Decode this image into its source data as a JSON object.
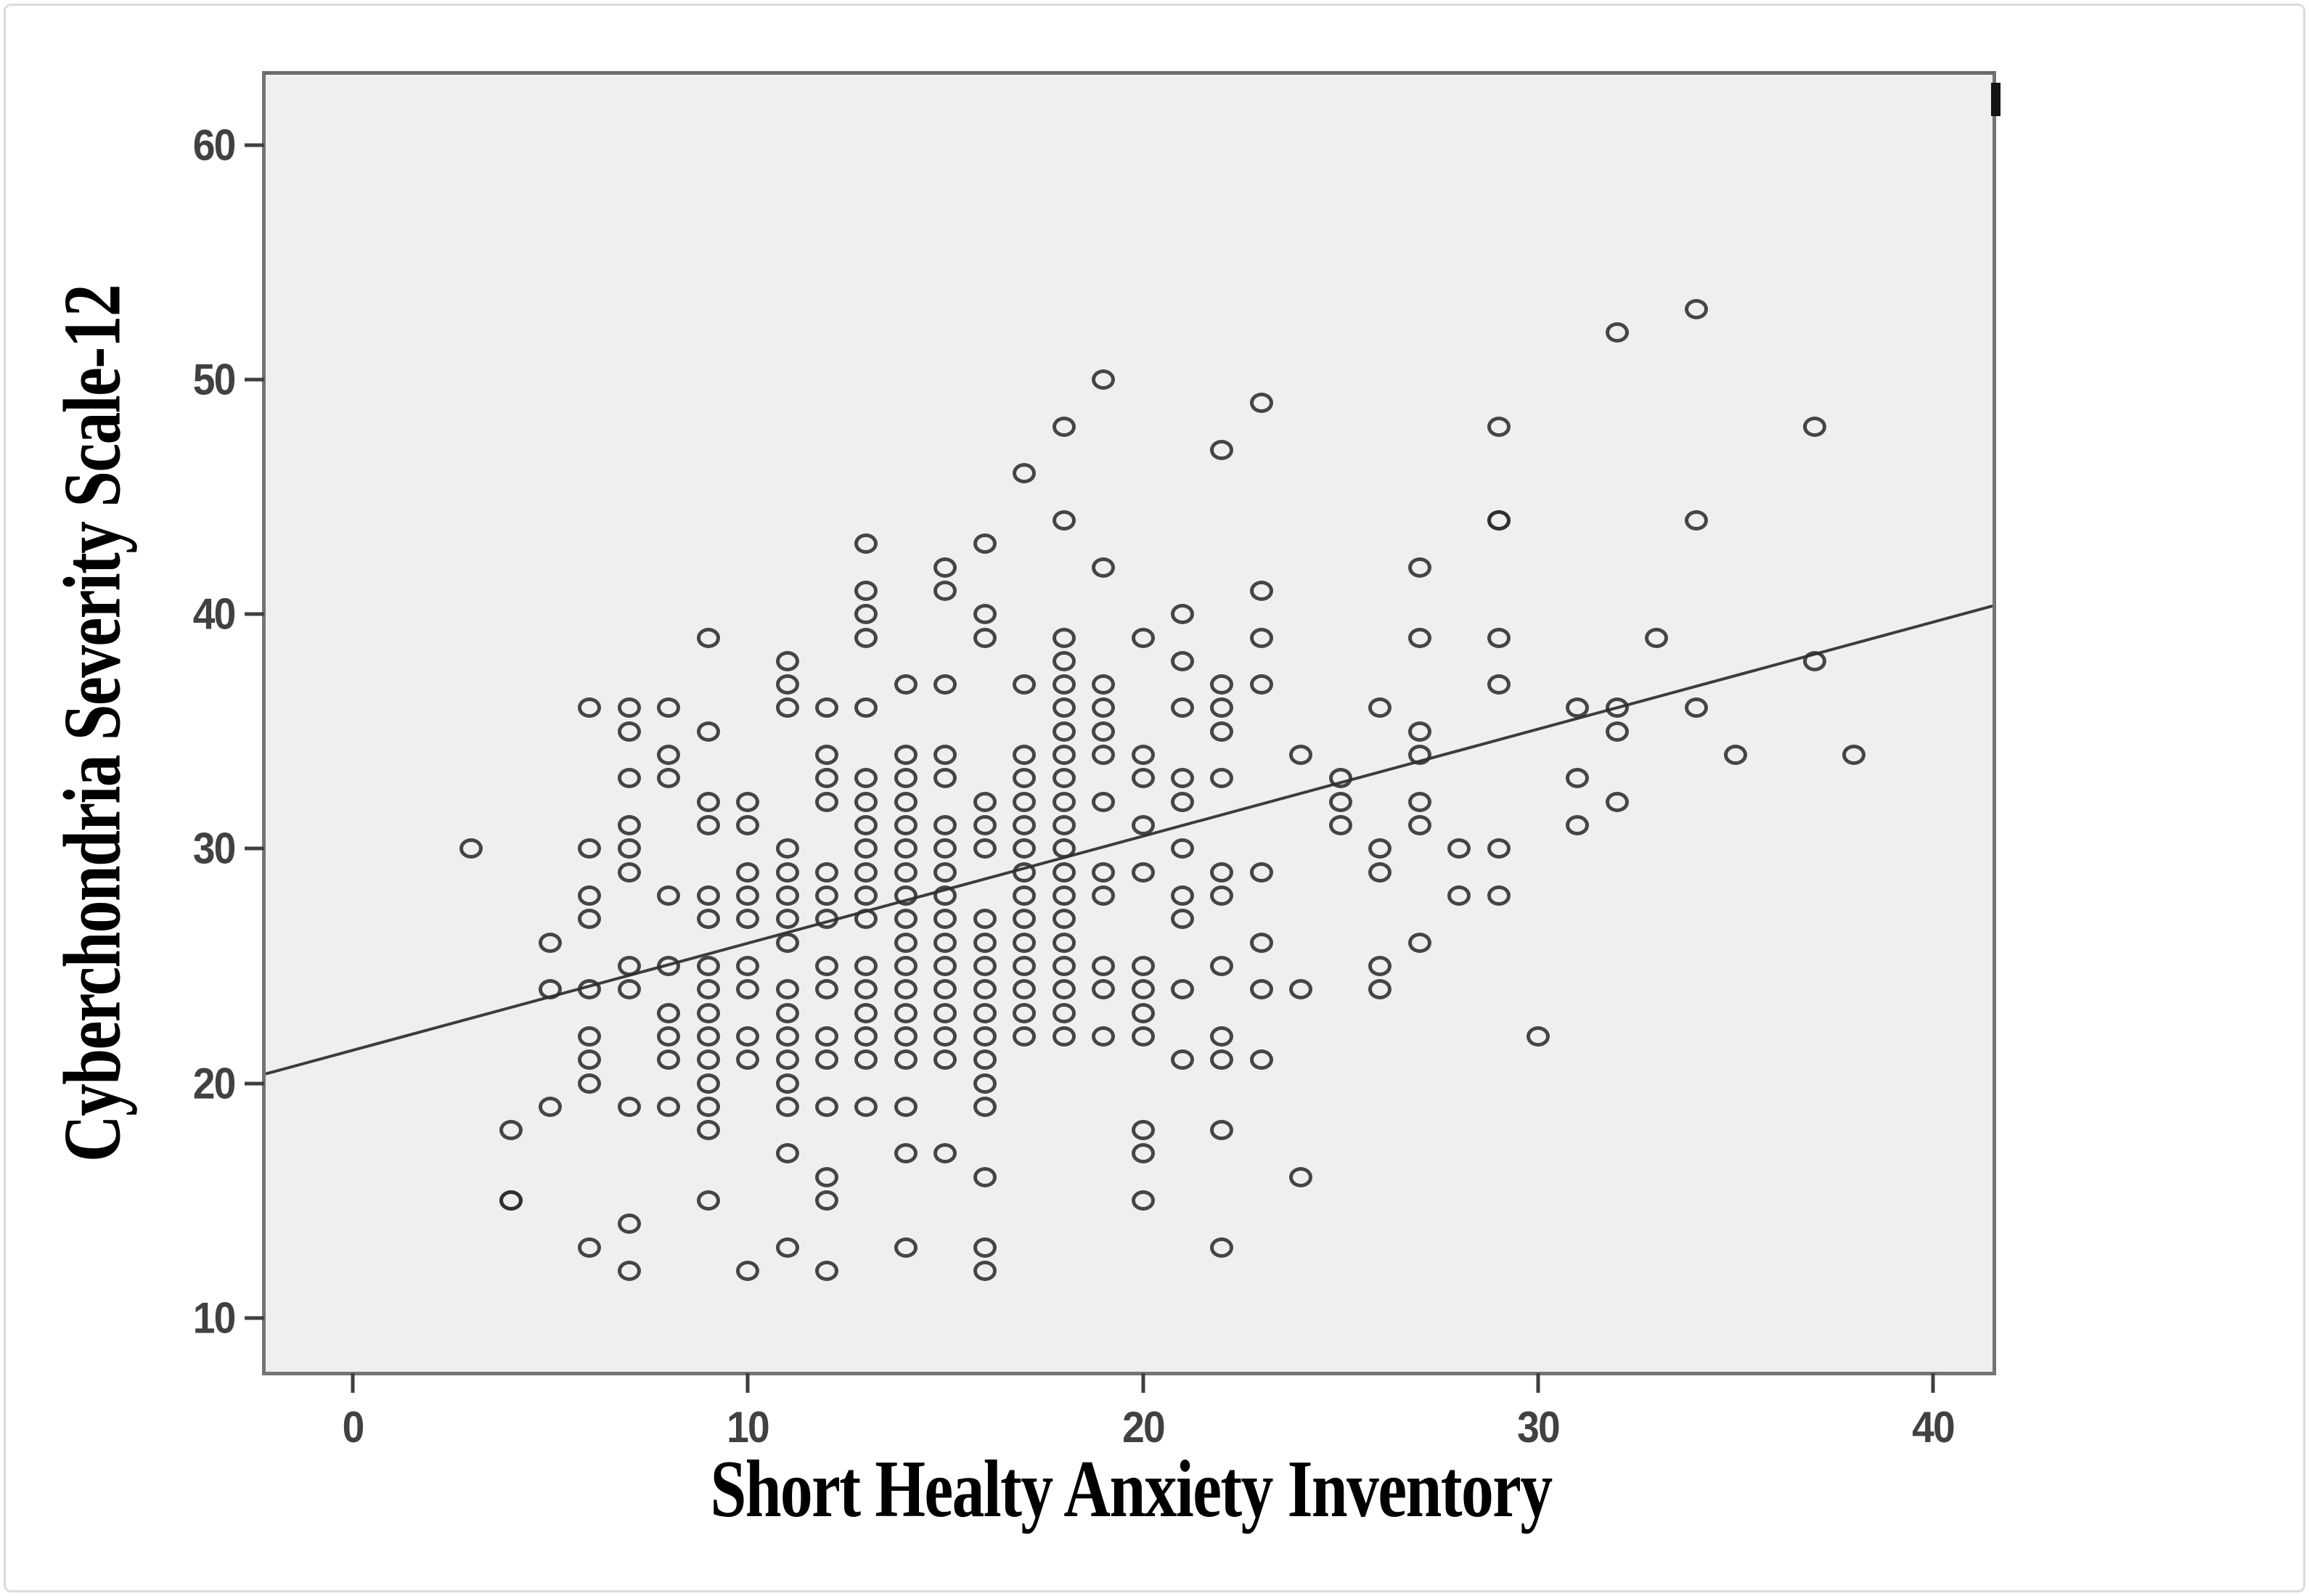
{
  "colors": {
    "panel_background": "#efefef",
    "panel_border": "#757575",
    "point_stroke": "#2e2e2e",
    "fit_line": "#3c3c3c",
    "tick_label": "#414141",
    "axis_title": "#000000"
  },
  "chart_data": {
    "type": "scatter",
    "title": "",
    "xlabel": "Short Healty Anxiety Inventory",
    "ylabel": "Cyberchondria Severity Scale-12",
    "x_ticks": [
      0,
      10,
      20,
      30,
      40
    ],
    "y_ticks": [
      10,
      20,
      30,
      40,
      50,
      60
    ],
    "xlim": [
      -2.2,
      41.5
    ],
    "ylim": [
      7.7,
      63.0
    ],
    "grid": false,
    "legend": "none",
    "marker": "open-circle",
    "fit_line": {
      "x1": -2.2,
      "y1": 20.4,
      "x2": 41.5,
      "y2": 40.35,
      "slope": 0.457,
      "intercept": 21.4
    },
    "points": [
      [
        3,
        30
      ],
      [
        4,
        18
      ],
      [
        4,
        15
      ],
      [
        4,
        15
      ],
      [
        5,
        26
      ],
      [
        5,
        24
      ],
      [
        5,
        19
      ],
      [
        6,
        36
      ],
      [
        6,
        30
      ],
      [
        6,
        28
      ],
      [
        6,
        27
      ],
      [
        6,
        24
      ],
      [
        6,
        22
      ],
      [
        6,
        21
      ],
      [
        6,
        20
      ],
      [
        6,
        13
      ],
      [
        7,
        36
      ],
      [
        7,
        35
      ],
      [
        7,
        33
      ],
      [
        7,
        31
      ],
      [
        7,
        30
      ],
      [
        7,
        29
      ],
      [
        7,
        25
      ],
      [
        7,
        24
      ],
      [
        7,
        19
      ],
      [
        7,
        14
      ],
      [
        7,
        12
      ],
      [
        8,
        36
      ],
      [
        8,
        34
      ],
      [
        8,
        33
      ],
      [
        8,
        28
      ],
      [
        8,
        25
      ],
      [
        8,
        23
      ],
      [
        8,
        22
      ],
      [
        8,
        21
      ],
      [
        8,
        19
      ],
      [
        9,
        39
      ],
      [
        9,
        35
      ],
      [
        9,
        32
      ],
      [
        9,
        31
      ],
      [
        9,
        28
      ],
      [
        9,
        27
      ],
      [
        9,
        25
      ],
      [
        9,
        24
      ],
      [
        9,
        23
      ],
      [
        9,
        22
      ],
      [
        9,
        21
      ],
      [
        9,
        20
      ],
      [
        9,
        19
      ],
      [
        9,
        18
      ],
      [
        9,
        15
      ],
      [
        10,
        32
      ],
      [
        10,
        31
      ],
      [
        10,
        29
      ],
      [
        10,
        28
      ],
      [
        10,
        27
      ],
      [
        10,
        25
      ],
      [
        10,
        24
      ],
      [
        10,
        22
      ],
      [
        10,
        21
      ],
      [
        10,
        12
      ],
      [
        11,
        38
      ],
      [
        11,
        37
      ],
      [
        11,
        36
      ],
      [
        11,
        30
      ],
      [
        11,
        29
      ],
      [
        11,
        28
      ],
      [
        11,
        27
      ],
      [
        11,
        26
      ],
      [
        11,
        24
      ],
      [
        11,
        23
      ],
      [
        11,
        22
      ],
      [
        11,
        21
      ],
      [
        11,
        20
      ],
      [
        11,
        19
      ],
      [
        11,
        17
      ],
      [
        11,
        13
      ],
      [
        12,
        36
      ],
      [
        12,
        34
      ],
      [
        12,
        33
      ],
      [
        12,
        32
      ],
      [
        12,
        29
      ],
      [
        12,
        28
      ],
      [
        12,
        27
      ],
      [
        12,
        25
      ],
      [
        12,
        24
      ],
      [
        12,
        22
      ],
      [
        12,
        21
      ],
      [
        12,
        19
      ],
      [
        12,
        16
      ],
      [
        12,
        15
      ],
      [
        12,
        12
      ],
      [
        13,
        43
      ],
      [
        13,
        41
      ],
      [
        13,
        40
      ],
      [
        13,
        39
      ],
      [
        13,
        36
      ],
      [
        13,
        33
      ],
      [
        13,
        32
      ],
      [
        13,
        31
      ],
      [
        13,
        30
      ],
      [
        13,
        29
      ],
      [
        13,
        28
      ],
      [
        13,
        27
      ],
      [
        13,
        25
      ],
      [
        13,
        24
      ],
      [
        13,
        23
      ],
      [
        13,
        22
      ],
      [
        13,
        21
      ],
      [
        13,
        19
      ],
      [
        14,
        37
      ],
      [
        14,
        34
      ],
      [
        14,
        33
      ],
      [
        14,
        32
      ],
      [
        14,
        31
      ],
      [
        14,
        30
      ],
      [
        14,
        29
      ],
      [
        14,
        28
      ],
      [
        14,
        27
      ],
      [
        14,
        26
      ],
      [
        14,
        25
      ],
      [
        14,
        24
      ],
      [
        14,
        23
      ],
      [
        14,
        22
      ],
      [
        14,
        21
      ],
      [
        14,
        19
      ],
      [
        14,
        17
      ],
      [
        14,
        13
      ],
      [
        15,
        42
      ],
      [
        15,
        41
      ],
      [
        15,
        37
      ],
      [
        15,
        34
      ],
      [
        15,
        33
      ],
      [
        15,
        31
      ],
      [
        15,
        30
      ],
      [
        15,
        29
      ],
      [
        15,
        28
      ],
      [
        15,
        27
      ],
      [
        15,
        26
      ],
      [
        15,
        25
      ],
      [
        15,
        24
      ],
      [
        15,
        23
      ],
      [
        15,
        22
      ],
      [
        15,
        21
      ],
      [
        15,
        17
      ],
      [
        16,
        43
      ],
      [
        16,
        40
      ],
      [
        16,
        39
      ],
      [
        16,
        32
      ],
      [
        16,
        31
      ],
      [
        16,
        30
      ],
      [
        16,
        27
      ],
      [
        16,
        26
      ],
      [
        16,
        25
      ],
      [
        16,
        24
      ],
      [
        16,
        23
      ],
      [
        16,
        22
      ],
      [
        16,
        21
      ],
      [
        16,
        20
      ],
      [
        16,
        19
      ],
      [
        16,
        16
      ],
      [
        16,
        13
      ],
      [
        16,
        12
      ],
      [
        17,
        46
      ],
      [
        17,
        37
      ],
      [
        17,
        34
      ],
      [
        17,
        33
      ],
      [
        17,
        32
      ],
      [
        17,
        31
      ],
      [
        17,
        30
      ],
      [
        17,
        29
      ],
      [
        17,
        28
      ],
      [
        17,
        27
      ],
      [
        17,
        26
      ],
      [
        17,
        25
      ],
      [
        17,
        24
      ],
      [
        17,
        23
      ],
      [
        17,
        22
      ],
      [
        18,
        48
      ],
      [
        18,
        44
      ],
      [
        18,
        39
      ],
      [
        18,
        38
      ],
      [
        18,
        37
      ],
      [
        18,
        36
      ],
      [
        18,
        35
      ],
      [
        18,
        34
      ],
      [
        18,
        33
      ],
      [
        18,
        32
      ],
      [
        18,
        31
      ],
      [
        18,
        30
      ],
      [
        18,
        29
      ],
      [
        18,
        28
      ],
      [
        18,
        27
      ],
      [
        18,
        26
      ],
      [
        18,
        25
      ],
      [
        18,
        24
      ],
      [
        18,
        23
      ],
      [
        18,
        22
      ],
      [
        19,
        50
      ],
      [
        19,
        42
      ],
      [
        19,
        37
      ],
      [
        19,
        36
      ],
      [
        19,
        35
      ],
      [
        19,
        34
      ],
      [
        19,
        32
      ],
      [
        19,
        29
      ],
      [
        19,
        28
      ],
      [
        19,
        25
      ],
      [
        19,
        24
      ],
      [
        19,
        22
      ],
      [
        20,
        39
      ],
      [
        20,
        34
      ],
      [
        20,
        33
      ],
      [
        20,
        31
      ],
      [
        20,
        29
      ],
      [
        20,
        25
      ],
      [
        20,
        24
      ],
      [
        20,
        23
      ],
      [
        20,
        22
      ],
      [
        20,
        18
      ],
      [
        20,
        17
      ],
      [
        20,
        15
      ],
      [
        21,
        40
      ],
      [
        21,
        38
      ],
      [
        21,
        36
      ],
      [
        21,
        33
      ],
      [
        21,
        32
      ],
      [
        21,
        30
      ],
      [
        21,
        28
      ],
      [
        21,
        27
      ],
      [
        21,
        24
      ],
      [
        21,
        21
      ],
      [
        22,
        47
      ],
      [
        22,
        37
      ],
      [
        22,
        36
      ],
      [
        22,
        35
      ],
      [
        22,
        33
      ],
      [
        22,
        29
      ],
      [
        22,
        28
      ],
      [
        22,
        25
      ],
      [
        22,
        22
      ],
      [
        22,
        21
      ],
      [
        22,
        18
      ],
      [
        22,
        13
      ],
      [
        23,
        49
      ],
      [
        23,
        41
      ],
      [
        23,
        39
      ],
      [
        23,
        37
      ],
      [
        23,
        29
      ],
      [
        23,
        26
      ],
      [
        23,
        24
      ],
      [
        23,
        21
      ],
      [
        24,
        34
      ],
      [
        24,
        24
      ],
      [
        24,
        16
      ],
      [
        25,
        33
      ],
      [
        25,
        32
      ],
      [
        25,
        31
      ],
      [
        26,
        36
      ],
      [
        26,
        30
      ],
      [
        26,
        29
      ],
      [
        26,
        25
      ],
      [
        26,
        24
      ],
      [
        27,
        42
      ],
      [
        27,
        39
      ],
      [
        27,
        35
      ],
      [
        27,
        34
      ],
      [
        27,
        32
      ],
      [
        27,
        31
      ],
      [
        27,
        26
      ],
      [
        28,
        30
      ],
      [
        28,
        28
      ],
      [
        29,
        48
      ],
      [
        29,
        44
      ],
      [
        29,
        44
      ],
      [
        29,
        39
      ],
      [
        29,
        37
      ],
      [
        29,
        30
      ],
      [
        29,
        28
      ],
      [
        30,
        22
      ],
      [
        31,
        36
      ],
      [
        31,
        33
      ],
      [
        31,
        31
      ],
      [
        32,
        52
      ],
      [
        32,
        36
      ],
      [
        32,
        35
      ],
      [
        32,
        32
      ],
      [
        33,
        39
      ],
      [
        34,
        53
      ],
      [
        34,
        44
      ],
      [
        34,
        36
      ],
      [
        35,
        34
      ],
      [
        37,
        48
      ],
      [
        37,
        38
      ],
      [
        38,
        34
      ]
    ]
  }
}
